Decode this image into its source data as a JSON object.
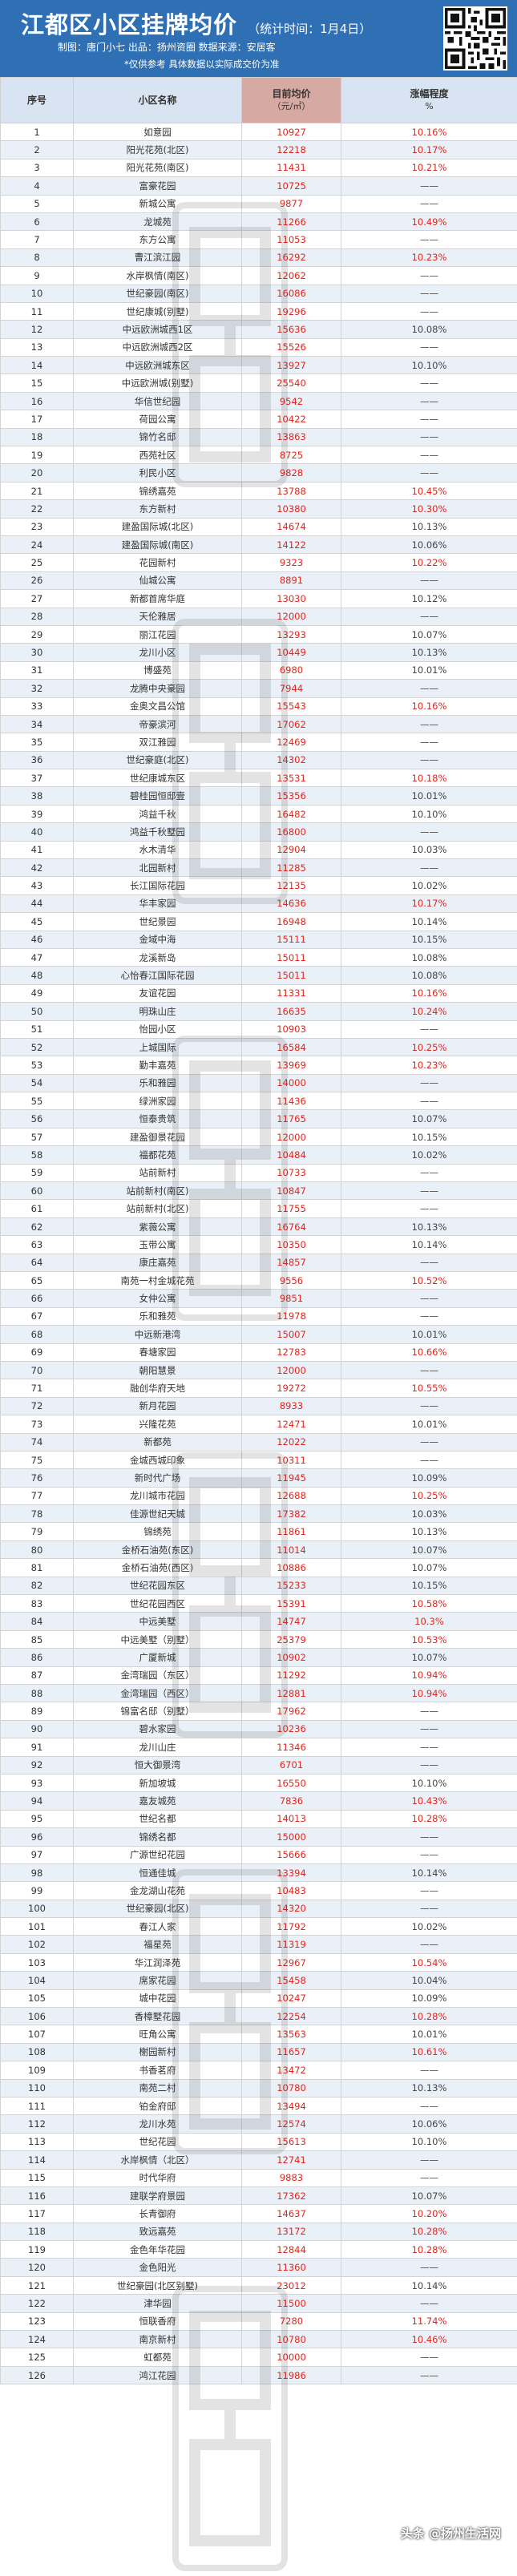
{
  "header": {
    "title": "江都区小区挂牌均价",
    "time": "（统计时间：1月4日）",
    "credits": "制图：唐门小七   出品：扬州资圈   数据来源：安居客",
    "note": "*仅供参考 具体数据以实际成交价为准"
  },
  "table": {
    "col_index": "序号",
    "col_name": "小区名称",
    "col_price": "目前均价",
    "col_price_unit": "（元/㎡）",
    "col_change": "涨幅程度",
    "col_change_unit": "%",
    "rows": [
      [
        "1",
        "如意园",
        "10927",
        "10.16%"
      ],
      [
        "2",
        "阳光花苑(北区)",
        "12218",
        "10.17%"
      ],
      [
        "3",
        "阳光花苑(南区)",
        "11431",
        "10.21%"
      ],
      [
        "4",
        "富豪花园",
        "10725",
        "——"
      ],
      [
        "5",
        "新城公寓",
        "9877",
        "——"
      ],
      [
        "6",
        "龙城苑",
        "11266",
        "10.49%"
      ],
      [
        "7",
        "东方公寓",
        "11053",
        "——"
      ],
      [
        "8",
        "曹江滨江园",
        "16292",
        "10.23%"
      ],
      [
        "9",
        "水岸枫情(南区)",
        "12062",
        "——"
      ],
      [
        "10",
        "世纪豪园(南区)",
        "16086",
        "——"
      ],
      [
        "11",
        "世纪康城(别墅)",
        "19296",
        "——"
      ],
      [
        "12",
        "中远欧洲城西1区",
        "15636",
        "10.08%"
      ],
      [
        "13",
        "中远欧洲城西2区",
        "15526",
        "——"
      ],
      [
        "14",
        "中远欧洲城东区",
        "13927",
        "10.10%"
      ],
      [
        "15",
        "中远欧洲城(别墅)",
        "25540",
        "——"
      ],
      [
        "16",
        "华信世纪园",
        "9542",
        "——"
      ],
      [
        "17",
        "荷园公寓",
        "10422",
        "——"
      ],
      [
        "18",
        "锦竹名邸",
        "13863",
        "——"
      ],
      [
        "19",
        "西苑社区",
        "8725",
        "——"
      ],
      [
        "20",
        "利民小区",
        "9828",
        "——"
      ],
      [
        "21",
        "锦绣嘉苑",
        "13788",
        "10.45%"
      ],
      [
        "22",
        "东方新村",
        "10380",
        "10.30%"
      ],
      [
        "23",
        "建盈国际城(北区)",
        "14674",
        "10.13%"
      ],
      [
        "24",
        "建盈国际城(南区)",
        "14122",
        "10.06%"
      ],
      [
        "25",
        "花园新村",
        "9323",
        "10.22%"
      ],
      [
        "26",
        "仙城公寓",
        "8891",
        "——"
      ],
      [
        "27",
        "新都首席华庭",
        "13030",
        "10.12%"
      ],
      [
        "28",
        "天伦雅居",
        "12000",
        "——"
      ],
      [
        "29",
        "丽江花园",
        "13293",
        "10.07%"
      ],
      [
        "30",
        "龙川小区",
        "10449",
        "10.13%"
      ],
      [
        "31",
        "博盛苑",
        "6980",
        "10.01%"
      ],
      [
        "32",
        "龙腾中央豪园",
        "7944",
        "——"
      ],
      [
        "33",
        "金奥文昌公馆",
        "15543",
        "10.16%"
      ],
      [
        "34",
        "帝豪滨河",
        "17062",
        "——"
      ],
      [
        "35",
        "双江雅园",
        "12469",
        "——"
      ],
      [
        "36",
        "世纪豪庭(北区)",
        "14302",
        "——"
      ],
      [
        "37",
        "世纪康城东区",
        "13531",
        "10.18%"
      ],
      [
        "38",
        "碧桂园恒邸壹",
        "15356",
        "10.01%"
      ],
      [
        "39",
        "鸿益千秋",
        "16482",
        "10.10%"
      ],
      [
        "40",
        "鸿益千秋墅园",
        "16800",
        "——"
      ],
      [
        "41",
        "水木清华",
        "12904",
        "10.03%"
      ],
      [
        "42",
        "北园新村",
        "11285",
        "——"
      ],
      [
        "43",
        "长江国际花园",
        "12135",
        "10.02%"
      ],
      [
        "44",
        "华丰家园",
        "14636",
        "10.17%"
      ],
      [
        "45",
        "世纪景园",
        "16948",
        "10.14%"
      ],
      [
        "46",
        "金域中海",
        "15111",
        "10.15%"
      ],
      [
        "47",
        "龙溪新岛",
        "15011",
        "10.08%"
      ],
      [
        "48",
        "心怡春江国际花园",
        "15011",
        "10.08%"
      ],
      [
        "49",
        "友谊花园",
        "11331",
        "10.16%"
      ],
      [
        "50",
        "明珠山庄",
        "16635",
        "10.24%"
      ],
      [
        "51",
        "怡园小区",
        "10903",
        "——"
      ],
      [
        "52",
        "上城国际",
        "16584",
        "10.25%"
      ],
      [
        "53",
        "勤丰嘉苑",
        "13969",
        "10.23%"
      ],
      [
        "54",
        "乐和雅园",
        "14000",
        "——"
      ],
      [
        "55",
        "绿洲家园",
        "11436",
        "——"
      ],
      [
        "56",
        "恒泰贵筑",
        "11765",
        "10.07%"
      ],
      [
        "57",
        "建盈御景花园",
        "12000",
        "10.15%"
      ],
      [
        "58",
        "福都花苑",
        "10484",
        "10.02%"
      ],
      [
        "59",
        "站前新村",
        "10733",
        "——"
      ],
      [
        "60",
        "站前新村(南区)",
        "10847",
        "——"
      ],
      [
        "61",
        "站前新村(北区)",
        "11755",
        "——"
      ],
      [
        "62",
        "紫薇公寓",
        "16764",
        "10.13%"
      ],
      [
        "63",
        "玉带公寓",
        "10350",
        "10.14%"
      ],
      [
        "64",
        "康庄嘉苑",
        "14857",
        "——"
      ],
      [
        "65",
        "南苑一村金城花苑",
        "9556",
        "10.52%"
      ],
      [
        "66",
        "女仲公寓",
        "9851",
        "——"
      ],
      [
        "67",
        "乐和雅苑",
        "11978",
        "——"
      ],
      [
        "68",
        "中远新港湾",
        "15007",
        "10.01%"
      ],
      [
        "69",
        "春塘家园",
        "12783",
        "10.66%"
      ],
      [
        "70",
        "朝阳慧景",
        "12000",
        "——"
      ],
      [
        "71",
        "融创华府天地",
        "19272",
        "10.55%"
      ],
      [
        "72",
        "新月花园",
        "8933",
        "——"
      ],
      [
        "73",
        "兴隆花苑",
        "12471",
        "10.01%"
      ],
      [
        "74",
        "新都苑",
        "12022",
        "——"
      ],
      [
        "75",
        "金城西城印象",
        "10311",
        "——"
      ],
      [
        "76",
        "新时代广场",
        "11945",
        "10.09%"
      ],
      [
        "77",
        "龙川城市花园",
        "12688",
        "10.25%"
      ],
      [
        "78",
        "佳源世纪天城",
        "17382",
        "10.03%"
      ],
      [
        "79",
        "锦绣苑",
        "11861",
        "10.13%"
      ],
      [
        "80",
        "金桥石油苑(东区)",
        "11014",
        "10.07%"
      ],
      [
        "81",
        "金桥石油苑(西区)",
        "10886",
        "10.07%"
      ],
      [
        "82",
        "世纪花园东区",
        "15233",
        "10.15%"
      ],
      [
        "83",
        "世纪花园西区",
        "15391",
        "10.58%"
      ],
      [
        "84",
        "中远美墅",
        "14747",
        "10.3%"
      ],
      [
        "85",
        "中远美墅（别墅）",
        "25379",
        "10.53%"
      ],
      [
        "86",
        "广厦新城",
        "10902",
        "10.07%"
      ],
      [
        "87",
        "金湾瑞园（东区）",
        "11292",
        "10.94%"
      ],
      [
        "88",
        "金湾瑞园（西区）",
        "12881",
        "10.94%"
      ],
      [
        "89",
        "锦富名邸（别墅）",
        "17962",
        "——"
      ],
      [
        "90",
        "碧水家园",
        "10236",
        "——"
      ],
      [
        "91",
        "龙川山庄",
        "11346",
        "——"
      ],
      [
        "92",
        "恒大御景湾",
        "6701",
        "——"
      ],
      [
        "93",
        "新加坡城",
        "16550",
        "10.10%"
      ],
      [
        "94",
        "嘉友城苑",
        "7836",
        "10.43%"
      ],
      [
        "95",
        "世纪名都",
        "14013",
        "10.28%"
      ],
      [
        "96",
        "锦绣名都",
        "15000",
        "——"
      ],
      [
        "97",
        "广源世纪花园",
        "15666",
        "——"
      ],
      [
        "98",
        "恒通佳城",
        "13394",
        "10.14%"
      ],
      [
        "99",
        "金龙湖山花苑",
        "10483",
        "——"
      ],
      [
        "100",
        "世纪豪园(北区)",
        "14320",
        "——"
      ],
      [
        "101",
        "春江人家",
        "11792",
        "10.02%"
      ],
      [
        "102",
        "福星苑",
        "11319",
        "——"
      ],
      [
        "103",
        "华江润泽苑",
        "12967",
        "10.54%"
      ],
      [
        "104",
        "席家花园",
        "15458",
        "10.04%"
      ],
      [
        "105",
        "城中花园",
        "10247",
        "10.09%"
      ],
      [
        "106",
        "香樟墅花园",
        "12254",
        "10.28%"
      ],
      [
        "107",
        "旺角公寓",
        "13563",
        "10.01%"
      ],
      [
        "108",
        "榭园新村",
        "11657",
        "10.61%"
      ],
      [
        "109",
        "书香茗府",
        "13472",
        "——"
      ],
      [
        "110",
        "南苑二村",
        "10780",
        "10.13%"
      ],
      [
        "111",
        "铂金府邸",
        "13494",
        "——"
      ],
      [
        "112",
        "龙川水苑",
        "12574",
        "10.06%"
      ],
      [
        "113",
        "世纪花园",
        "15613",
        "10.10%"
      ],
      [
        "114",
        "水岸枫情（北区）",
        "12741",
        "——"
      ],
      [
        "115",
        "时代华府",
        "9883",
        "——"
      ],
      [
        "116",
        "建联学府景园",
        "17362",
        "10.07%"
      ],
      [
        "117",
        "长青御府",
        "14637",
        "10.20%"
      ],
      [
        "118",
        "致远嘉苑",
        "13172",
        "10.28%"
      ],
      [
        "119",
        "金色年华花园",
        "12844",
        "10.28%"
      ],
      [
        "120",
        "金色阳光",
        "11360",
        "——"
      ],
      [
        "121",
        "世纪豪园(北区别墅)",
        "23012",
        "10.14%"
      ],
      [
        "122",
        "津华园",
        "11500",
        "——"
      ],
      [
        "123",
        "恒联香府",
        "7280",
        "11.74%"
      ],
      [
        "124",
        "南京新村",
        "10780",
        "10.46%"
      ],
      [
        "125",
        "虹都苑",
        "10000",
        "——"
      ],
      [
        "126",
        "鸿江花园",
        "11986",
        "——"
      ]
    ]
  },
  "watermark_text": "扬州资圈",
  "footer_mark": "头条 @扬州生活网"
}
